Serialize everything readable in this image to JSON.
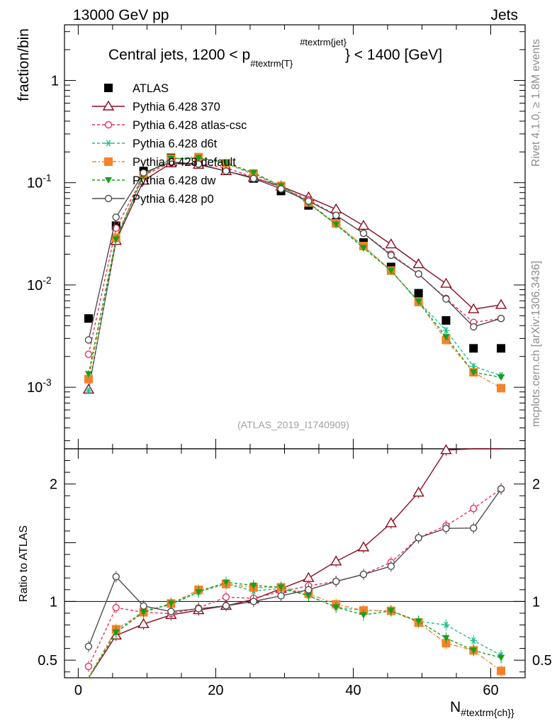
{
  "header": {
    "left": "13000 GeV pp",
    "right": "Jets"
  },
  "side": {
    "rivet": "Rivet 4.1.0, ≥ 1.8M events",
    "mcplots": "mcplots.cern.ch [arXiv:1306.3436]"
  },
  "chart_data": {
    "type": "scatter",
    "title": "Central jets, 1200 < p",
    "title_sub": "#textrm{T}",
    "title_sup": "#textrm{jet}",
    "title_end": "} < 1400 [GeV]",
    "analysis_id": "(ATLAS_2019_I1740909)",
    "ylabel": "fraction/bin",
    "ratio_ylabel": "Ratio to ATLAS",
    "xlabel_main": "N",
    "xlabel_sub": "#textrm{ch}",
    "xlabel_end": "}",
    "xlim": [
      -2,
      65
    ],
    "ylim": [
      0.00025,
      3.5
    ],
    "ratio_ylim": [
      0.35,
      2.3
    ],
    "xticks": [
      "0",
      "20",
      "40",
      "60"
    ],
    "yticks": [
      "10",
      "10",
      "10",
      "1"
    ],
    "yticks_exp": [
      "-3",
      "-2",
      "-1",
      ""
    ],
    "ratio_yticks": [
      "0.5",
      "1",
      "2"
    ],
    "x": [
      1.5,
      5.5,
      9.5,
      13.5,
      17.5,
      21.5,
      25.5,
      29.5,
      33.5,
      37.5,
      41.5,
      45.5,
      49.5,
      53.5,
      57.5,
      61.5
    ],
    "series": [
      {
        "name": "ATLAS",
        "color": "#000000",
        "marker": "square",
        "dash": "",
        "values": [
          0.0047,
          0.038,
          0.13,
          0.175,
          0.162,
          0.135,
          0.11,
          0.083,
          0.06,
          0.041,
          0.026,
          0.015,
          0.0083,
          0.0045,
          0.0024,
          0.0024
        ]
      },
      {
        "name": "Pythia 6.428 370",
        "color": "#8b0a1e",
        "marker": "triangle",
        "dash": "",
        "values": [
          0.00095,
          0.027,
          0.105,
          0.155,
          0.15,
          0.13,
          0.112,
          0.092,
          0.072,
          0.055,
          0.038,
          0.025,
          0.016,
          0.0103,
          0.0058,
          0.0064
        ]
      },
      {
        "name": "Pythia 6.428 atlas-csc",
        "color": "#e8325a",
        "marker": "circle",
        "dash": "4,3",
        "values": [
          0.0021,
          0.036,
          0.118,
          0.157,
          0.153,
          0.14,
          0.113,
          0.09,
          0.068,
          0.048,
          0.032,
          0.02,
          0.0128,
          0.0074,
          0.0043,
          0.0047
        ]
      },
      {
        "name": "Pythia 6.428 d6t",
        "color": "#1fbf8f",
        "marker": "star",
        "dash": "4,3",
        "values": [
          0.00092,
          0.028,
          0.12,
          0.17,
          0.175,
          0.155,
          0.12,
          0.092,
          0.063,
          0.039,
          0.024,
          0.0138,
          0.0069,
          0.0036,
          0.0016,
          0.0013
        ]
      },
      {
        "name": "Pythia 6.428 default",
        "color": "#f5822a",
        "marker": "square",
        "dash": "6,3,2,3",
        "values": [
          0.0012,
          0.029,
          0.118,
          0.172,
          0.178,
          0.155,
          0.123,
          0.093,
          0.064,
          0.04,
          0.024,
          0.0138,
          0.0068,
          0.0029,
          0.0014,
          0.00098
        ]
      },
      {
        "name": "Pythia 6.428 dw",
        "color": "#1a9e1a",
        "marker": "tridown",
        "dash": "4,3",
        "values": [
          0.00135,
          0.028,
          0.118,
          0.172,
          0.175,
          0.157,
          0.125,
          0.093,
          0.063,
          0.039,
          0.023,
          0.0138,
          0.0069,
          0.0031,
          0.0014,
          0.00125
        ]
      },
      {
        "name": "Pythia 6.428 p0",
        "color": "#4d4d4d",
        "marker": "circle",
        "dash": "",
        "values": [
          0.0029,
          0.046,
          0.125,
          0.16,
          0.152,
          0.13,
          0.11,
          0.087,
          0.066,
          0.048,
          0.032,
          0.0195,
          0.0128,
          0.0073,
          0.0039,
          0.0047
        ]
      }
    ]
  }
}
